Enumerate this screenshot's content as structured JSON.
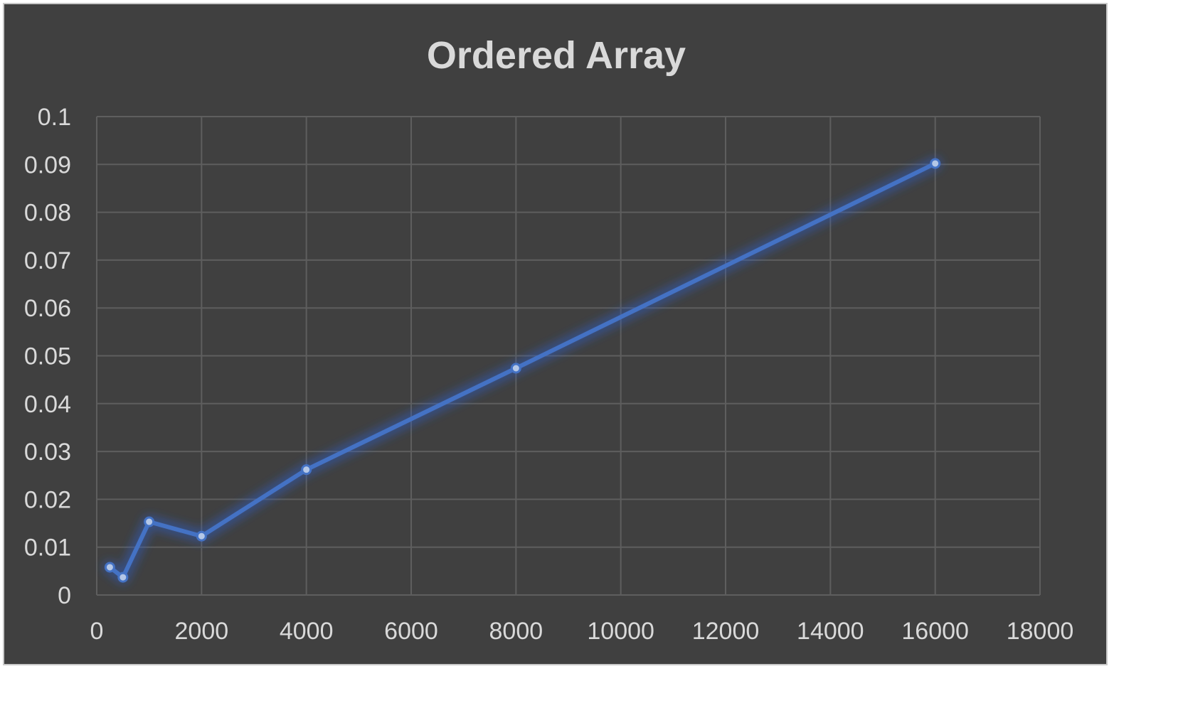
{
  "chart_data": {
    "type": "line",
    "title": "Ordered Array",
    "xlabel": "",
    "ylabel": "",
    "xlim": [
      0,
      18000
    ],
    "ylim": [
      0,
      0.1
    ],
    "x_ticks": [
      "0",
      "2000",
      "4000",
      "6000",
      "8000",
      "10000",
      "12000",
      "14000",
      "16000",
      "18000"
    ],
    "y_ticks": [
      "0",
      "0.01",
      "0.02",
      "0.03",
      "0.04",
      "0.05",
      "0.06",
      "0.07",
      "0.08",
      "0.09",
      "0.1"
    ],
    "grid": true,
    "legend": "none",
    "series": [
      {
        "color": "#4472c4",
        "points": [
          {
            "x": 250,
            "y": 0.0058
          },
          {
            "x": 500,
            "y": 0.0037
          },
          {
            "x": 1000,
            "y": 0.0153
          },
          {
            "x": 2000,
            "y": 0.0123
          },
          {
            "x": 4000,
            "y": 0.0262
          },
          {
            "x": 8000,
            "y": 0.0474
          },
          {
            "x": 16000,
            "y": 0.0902
          }
        ]
      }
    ]
  }
}
